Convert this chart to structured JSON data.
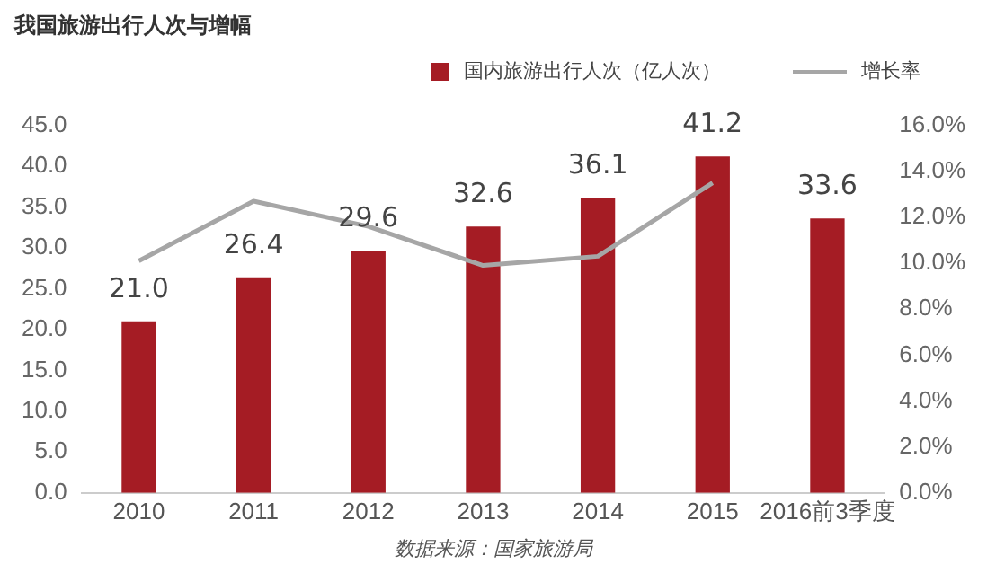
{
  "chart_data": {
    "type": "bar",
    "title": "我国旅游出行人次与增幅",
    "categories": [
      "2010",
      "2011",
      "2012",
      "2013",
      "2014",
      "2015",
      "2016前3季度"
    ],
    "series": [
      {
        "name": "国内旅游出行人次（亿人次）",
        "color": "#a51c24",
        "values": [
          21.0,
          26.4,
          29.6,
          32.6,
          36.1,
          41.2,
          33.6
        ],
        "value_labels": [
          "21.0",
          "26.4",
          "29.6",
          "32.6",
          "36.1",
          "41.2",
          "33.6"
        ]
      },
      {
        "name": "增长率",
        "type": "line",
        "axis": "y2",
        "color": "#a6a6a6",
        "values": [
          10.1,
          12.7,
          11.6,
          9.9,
          10.3,
          13.5,
          null
        ]
      }
    ],
    "ylim": [
      0,
      45
    ],
    "yticks": [
      {
        "value": 0,
        "label": "0.0"
      },
      {
        "value": 5,
        "label": "5.0"
      },
      {
        "value": 10,
        "label": "10.0"
      },
      {
        "value": 15,
        "label": "15.0"
      },
      {
        "value": 20,
        "label": "20.0"
      },
      {
        "value": 25,
        "label": "25.0"
      },
      {
        "value": 30,
        "label": "30.0"
      },
      {
        "value": 35,
        "label": "35.0"
      },
      {
        "value": 40,
        "label": "40.0"
      },
      {
        "value": 45,
        "label": "45.0"
      }
    ],
    "y2lim": [
      0,
      16
    ],
    "y2ticks": [
      {
        "value": 0,
        "label": "0.0%"
      },
      {
        "value": 2,
        "label": "2.0%"
      },
      {
        "value": 4,
        "label": "4.0%"
      },
      {
        "value": 6,
        "label": "6.0%"
      },
      {
        "value": 8,
        "label": "8.0%"
      },
      {
        "value": 10,
        "label": "10.0%"
      },
      {
        "value": 12,
        "label": "12.0%"
      },
      {
        "value": 14,
        "label": "14.0%"
      },
      {
        "value": 16,
        "label": "16.0%"
      }
    ],
    "grid": false,
    "legend": "top right",
    "marker": "none",
    "annotations": [
      "数据来源：国家旅游局"
    ]
  }
}
